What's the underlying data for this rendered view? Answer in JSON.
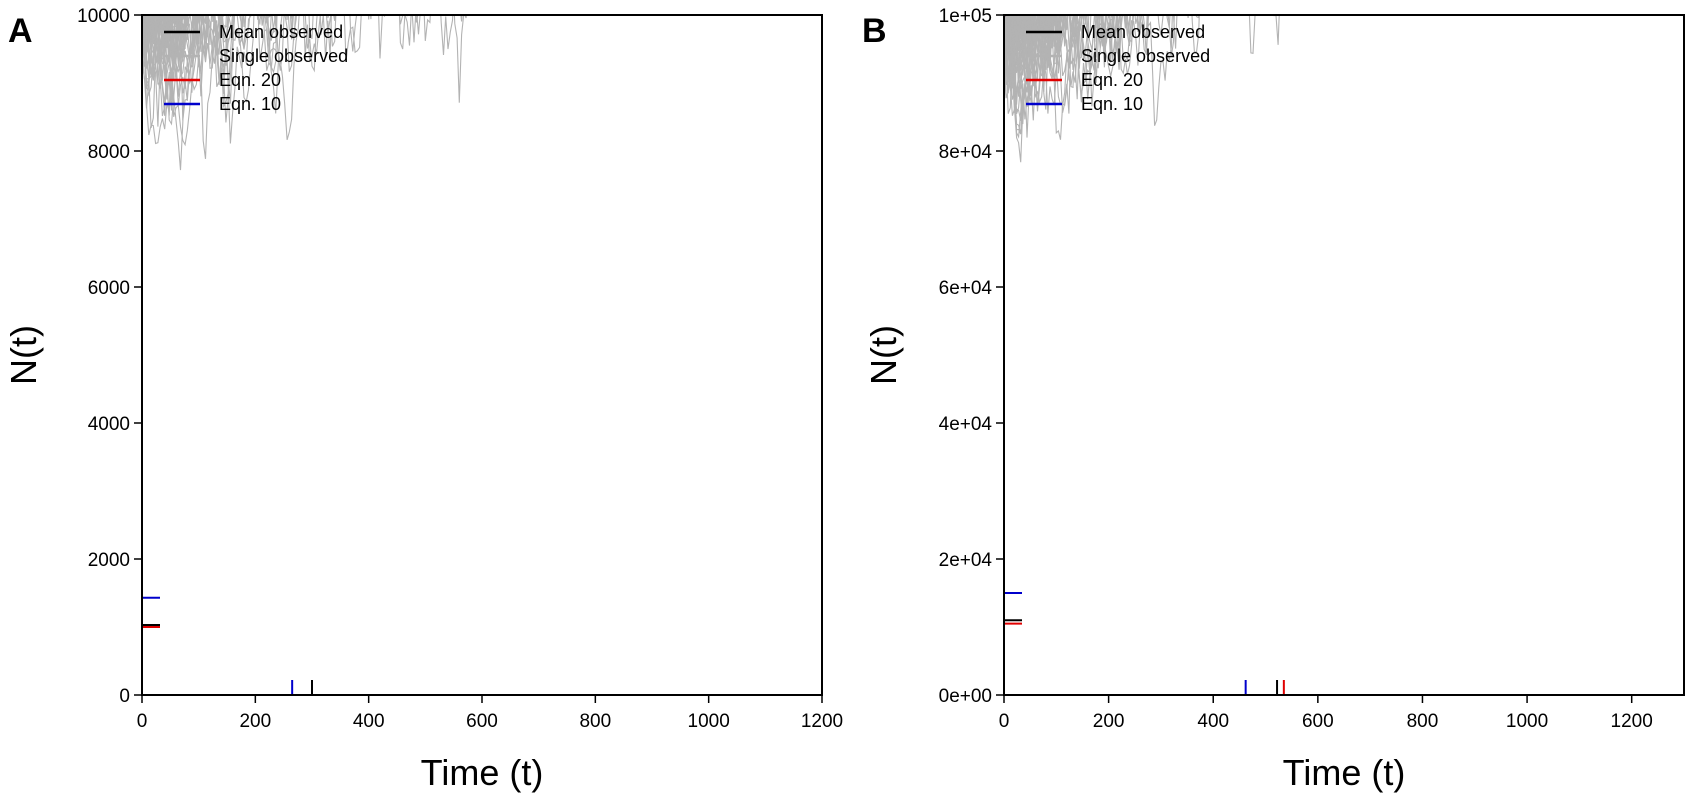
{
  "chart_data": [
    {
      "panel": "A",
      "type": "line",
      "xlabel": "Time (t)",
      "ylabel": "N(t)",
      "xlim": [
        0,
        1200
      ],
      "ylim": [
        0,
        10000
      ],
      "xticks": [
        0,
        200,
        400,
        600,
        800,
        1000,
        1200
      ],
      "yticks": [
        0,
        2000,
        4000,
        6000,
        8000,
        10000
      ],
      "ytick_labels": [
        "0",
        "2000",
        "4000",
        "6000",
        "8000",
        "10000"
      ],
      "legend": {
        "position": "top-left",
        "entries": [
          "Mean observed",
          "Single observed",
          "Eqn. 20",
          "Eqn. 10"
        ]
      },
      "series": [
        {
          "name": "Mean observed",
          "color": "#000000",
          "n0": 10000,
          "t_min": 300,
          "n_min": 1020
        },
        {
          "name": "Single observed",
          "color": "#b3b3b3",
          "n0": 10000,
          "t_min": 300,
          "n_min": 1020,
          "note_runs": 100
        },
        {
          "name": "Eqn. 20",
          "color": "#e00000",
          "n0": 10000,
          "t_min": 295,
          "n_min": 1000
        },
        {
          "name": "Eqn. 10",
          "color": "#0000cc",
          "n0": 10000,
          "t_min": 265,
          "n_min": 1430
        }
      ],
      "markers": {
        "x": [
          {
            "value": 265,
            "color": "#0000cc"
          },
          {
            "value": 300,
            "color": "#000000"
          }
        ],
        "y": [
          {
            "value": 1430,
            "color": "#0000cc"
          },
          {
            "value": 1030,
            "color": "#000000"
          },
          {
            "value": 1000,
            "color": "#e00000"
          }
        ]
      }
    },
    {
      "panel": "B",
      "type": "line",
      "xlabel": "Time (t)",
      "ylabel": "N(t)",
      "xlim": [
        0,
        1300
      ],
      "ylim": [
        0,
        100000
      ],
      "xticks": [
        0,
        200,
        400,
        600,
        800,
        1000,
        1200
      ],
      "yticks": [
        0,
        20000,
        40000,
        60000,
        80000,
        100000
      ],
      "ytick_labels": [
        "0e+00",
        "2e+04",
        "4e+04",
        "6e+04",
        "8e+04",
        "1e+05"
      ],
      "legend": {
        "position": "top-left",
        "entries": [
          "Mean observed",
          "Single observed",
          "Eqn. 20",
          "Eqn. 10"
        ]
      },
      "series": [
        {
          "name": "Mean observed",
          "color": "#000000",
          "n0": 100000,
          "t_min": 522,
          "n_min": 10800
        },
        {
          "name": "Single observed",
          "color": "#b3b3b3",
          "n0": 100000,
          "t_min": 522,
          "n_min": 10800
        },
        {
          "name": "Eqn. 20",
          "color": "#e00000",
          "n0": 100000,
          "t_min": 535,
          "n_min": 10500
        },
        {
          "name": "Eqn. 10",
          "color": "#0000cc",
          "n0": 100000,
          "t_min": 462,
          "n_min": 15000
        }
      ],
      "markers": {
        "x": [
          {
            "value": 462,
            "color": "#0000cc"
          },
          {
            "value": 522,
            "color": "#000000"
          },
          {
            "value": 535,
            "color": "#e00000"
          }
        ],
        "y": [
          {
            "value": 15000,
            "color": "#0000cc"
          },
          {
            "value": 11000,
            "color": "#000000"
          },
          {
            "value": 10500,
            "color": "#e00000"
          }
        ]
      }
    }
  ]
}
